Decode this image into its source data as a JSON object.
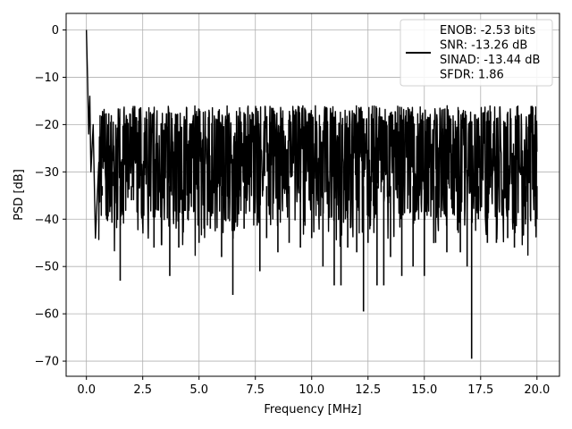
{
  "chart_data": {
    "type": "line",
    "title": "",
    "xlabel": "Frequency [MHz]",
    "ylabel": "PSD [dB]",
    "xlim": [
      -0.9,
      21.0
    ],
    "ylim": [
      -73.2,
      3.5
    ],
    "xticks": [
      0.0,
      2.5,
      5.0,
      7.5,
      10.0,
      12.5,
      15.0,
      17.5,
      20.0
    ],
    "xtick_labels": [
      "0.0",
      "2.5",
      "5.0",
      "7.5",
      "10.0",
      "12.5",
      "15.0",
      "17.5",
      "20.0"
    ],
    "yticks": [
      0,
      -10,
      -20,
      -30,
      -40,
      -50,
      -60,
      -70
    ],
    "ytick_labels": [
      "0",
      "−10",
      "−20",
      "−30",
      "−40",
      "−50",
      "−60",
      "−70"
    ],
    "grid": true,
    "legend_position": "top-right",
    "series_color": "#000000",
    "series": [
      {
        "name": "ENOB: -2.53 bits\nSNR: -13.26 dB\nSINAD: -13.44 dB\nSFDR: 1.86",
        "noise_floor_band": [
          -35,
          -20
        ],
        "x": [
          0.0,
          0.05,
          0.1,
          0.15,
          0.2,
          0.3,
          0.4,
          0.55,
          0.7,
          0.9,
          1.2,
          1.5,
          2.0,
          2.5,
          3.0,
          3.7,
          4.1,
          4.5,
          5.0,
          5.5,
          6.0,
          6.5,
          7.0,
          7.7,
          8.0,
          8.5,
          9.0,
          9.5,
          10.0,
          10.5,
          11.0,
          11.3,
          11.6,
          12.0,
          12.3,
          12.5,
          12.9,
          13.2,
          13.5,
          14.0,
          14.5,
          15.0,
          15.5,
          16.0,
          16.6,
          16.9,
          17.1,
          17.4,
          17.8,
          18.2,
          18.7,
          19.0,
          19.5,
          20.0
        ],
        "y": [
          0.0,
          -10.0,
          -22.0,
          -14.0,
          -30.0,
          -20.0,
          -44.0,
          -28.0,
          -35.0,
          -40.0,
          -30.0,
          -53.0,
          -36.0,
          -41.0,
          -46.0,
          -52.0,
          -46.0,
          -40.0,
          -45.0,
          -42.0,
          -48.0,
          -56.0,
          -42.0,
          -51.0,
          -44.0,
          -47.0,
          -45.0,
          -46.0,
          -44.0,
          -50.0,
          -54.0,
          -54.0,
          -46.0,
          -47.0,
          -59.5,
          -45.0,
          -54.0,
          -54.0,
          -48.0,
          -52.0,
          -50.0,
          -52.0,
          -45.0,
          -47.0,
          -47.0,
          -50.0,
          -69.5,
          -40.0,
          -45.0,
          -45.0,
          -44.0,
          -46.0,
          -40.0,
          -40.0
        ]
      }
    ]
  }
}
